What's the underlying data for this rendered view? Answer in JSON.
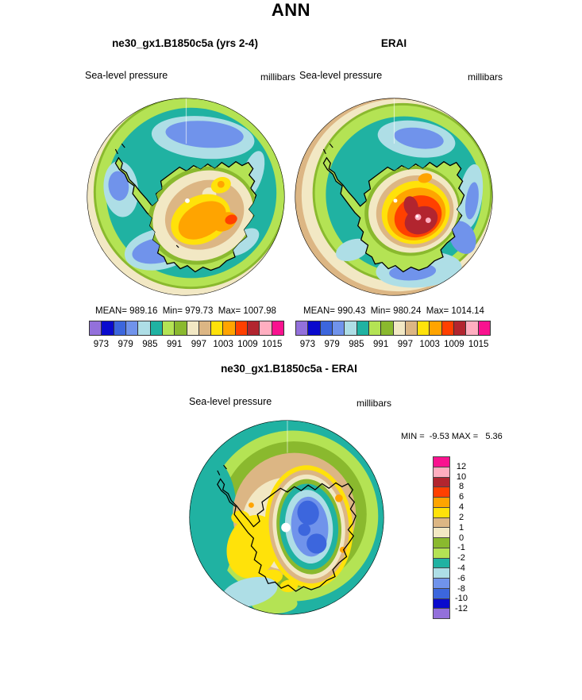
{
  "page_title": "ANN",
  "panels": {
    "model": {
      "title": "ne30_gx1.B1850c5a (yrs 2-4)",
      "field_label": "Sea-level pressure",
      "units_label": "millibars",
      "stats": "MEAN= 989.16  Min= 979.73  Max= 1007.98"
    },
    "reference": {
      "title": "ERAI",
      "field_label": "Sea-level pressure",
      "units_label": "millibars",
      "stats": "MEAN= 990.43  Min= 980.24  Max= 1014.14"
    },
    "difference": {
      "title": "ne30_gx1.B1850c5a - ERAI",
      "field_label": "Sea-level pressure",
      "units_label": "millibars",
      "minmax": "MIN =  -9.53 MAX =   5.36"
    }
  },
  "colorbar": {
    "palette": [
      "#9370DB",
      "#0A0ACD",
      "#3C66DD",
      "#7093EB",
      "#AEDEE6",
      "#20B2A2",
      "#B4E354",
      "#8AB92E",
      "#F2E8C4",
      "#DCB684",
      "#FFE20A",
      "#FFA400",
      "#FF4000",
      "#B2252F",
      "#FFAEC0",
      "#F9128F"
    ],
    "pressure_ticks": [
      "973",
      "979",
      "985",
      "991",
      "997",
      "1003",
      "1009",
      "1015"
    ],
    "diff_ticks": [
      "12",
      "10",
      "8",
      "6",
      "4",
      "2",
      "1",
      "0",
      "-1",
      "-2",
      "-4",
      "-6",
      "-8",
      "-10",
      "-12"
    ]
  },
  "chart_data": [
    {
      "type": "heatmap",
      "subtype": "south-polar-stereographic-contour-map",
      "season": "ANN",
      "title": "ne30_gx1.B1850c5a (yrs 2-4)",
      "variable": "Sea-level pressure",
      "units": "millibars",
      "stats": {
        "mean": 989.16,
        "min": 979.73,
        "max": 1007.98
      },
      "contour_levels": [
        973,
        976,
        979,
        982,
        985,
        988,
        991,
        994,
        997,
        1000,
        1003,
        1006,
        1009,
        1012,
        1015
      ],
      "labeled_levels": [
        973,
        979,
        985,
        991,
        997,
        1003,
        1009,
        1015
      ],
      "legend_position": "below"
    },
    {
      "type": "heatmap",
      "subtype": "south-polar-stereographic-contour-map",
      "season": "ANN",
      "title": "ERAI",
      "variable": "Sea-level pressure",
      "units": "millibars",
      "stats": {
        "mean": 990.43,
        "min": 980.24,
        "max": 1014.14
      },
      "contour_levels": [
        973,
        976,
        979,
        982,
        985,
        988,
        991,
        994,
        997,
        1000,
        1003,
        1006,
        1009,
        1012,
        1015
      ],
      "labeled_levels": [
        973,
        979,
        985,
        991,
        997,
        1003,
        1009,
        1015
      ],
      "legend_position": "below"
    },
    {
      "type": "heatmap",
      "subtype": "south-polar-stereographic-contour-map",
      "season": "ANN",
      "title": "ne30_gx1.B1850c5a - ERAI",
      "variable": "Sea-level pressure",
      "units": "millibars",
      "stats": {
        "min": -9.53,
        "max": 5.36
      },
      "contour_levels": [
        -12,
        -10,
        -8,
        -6,
        -4,
        -2,
        -1,
        0,
        1,
        2,
        4,
        6,
        8,
        10,
        12
      ],
      "legend_position": "right-vertical"
    }
  ]
}
